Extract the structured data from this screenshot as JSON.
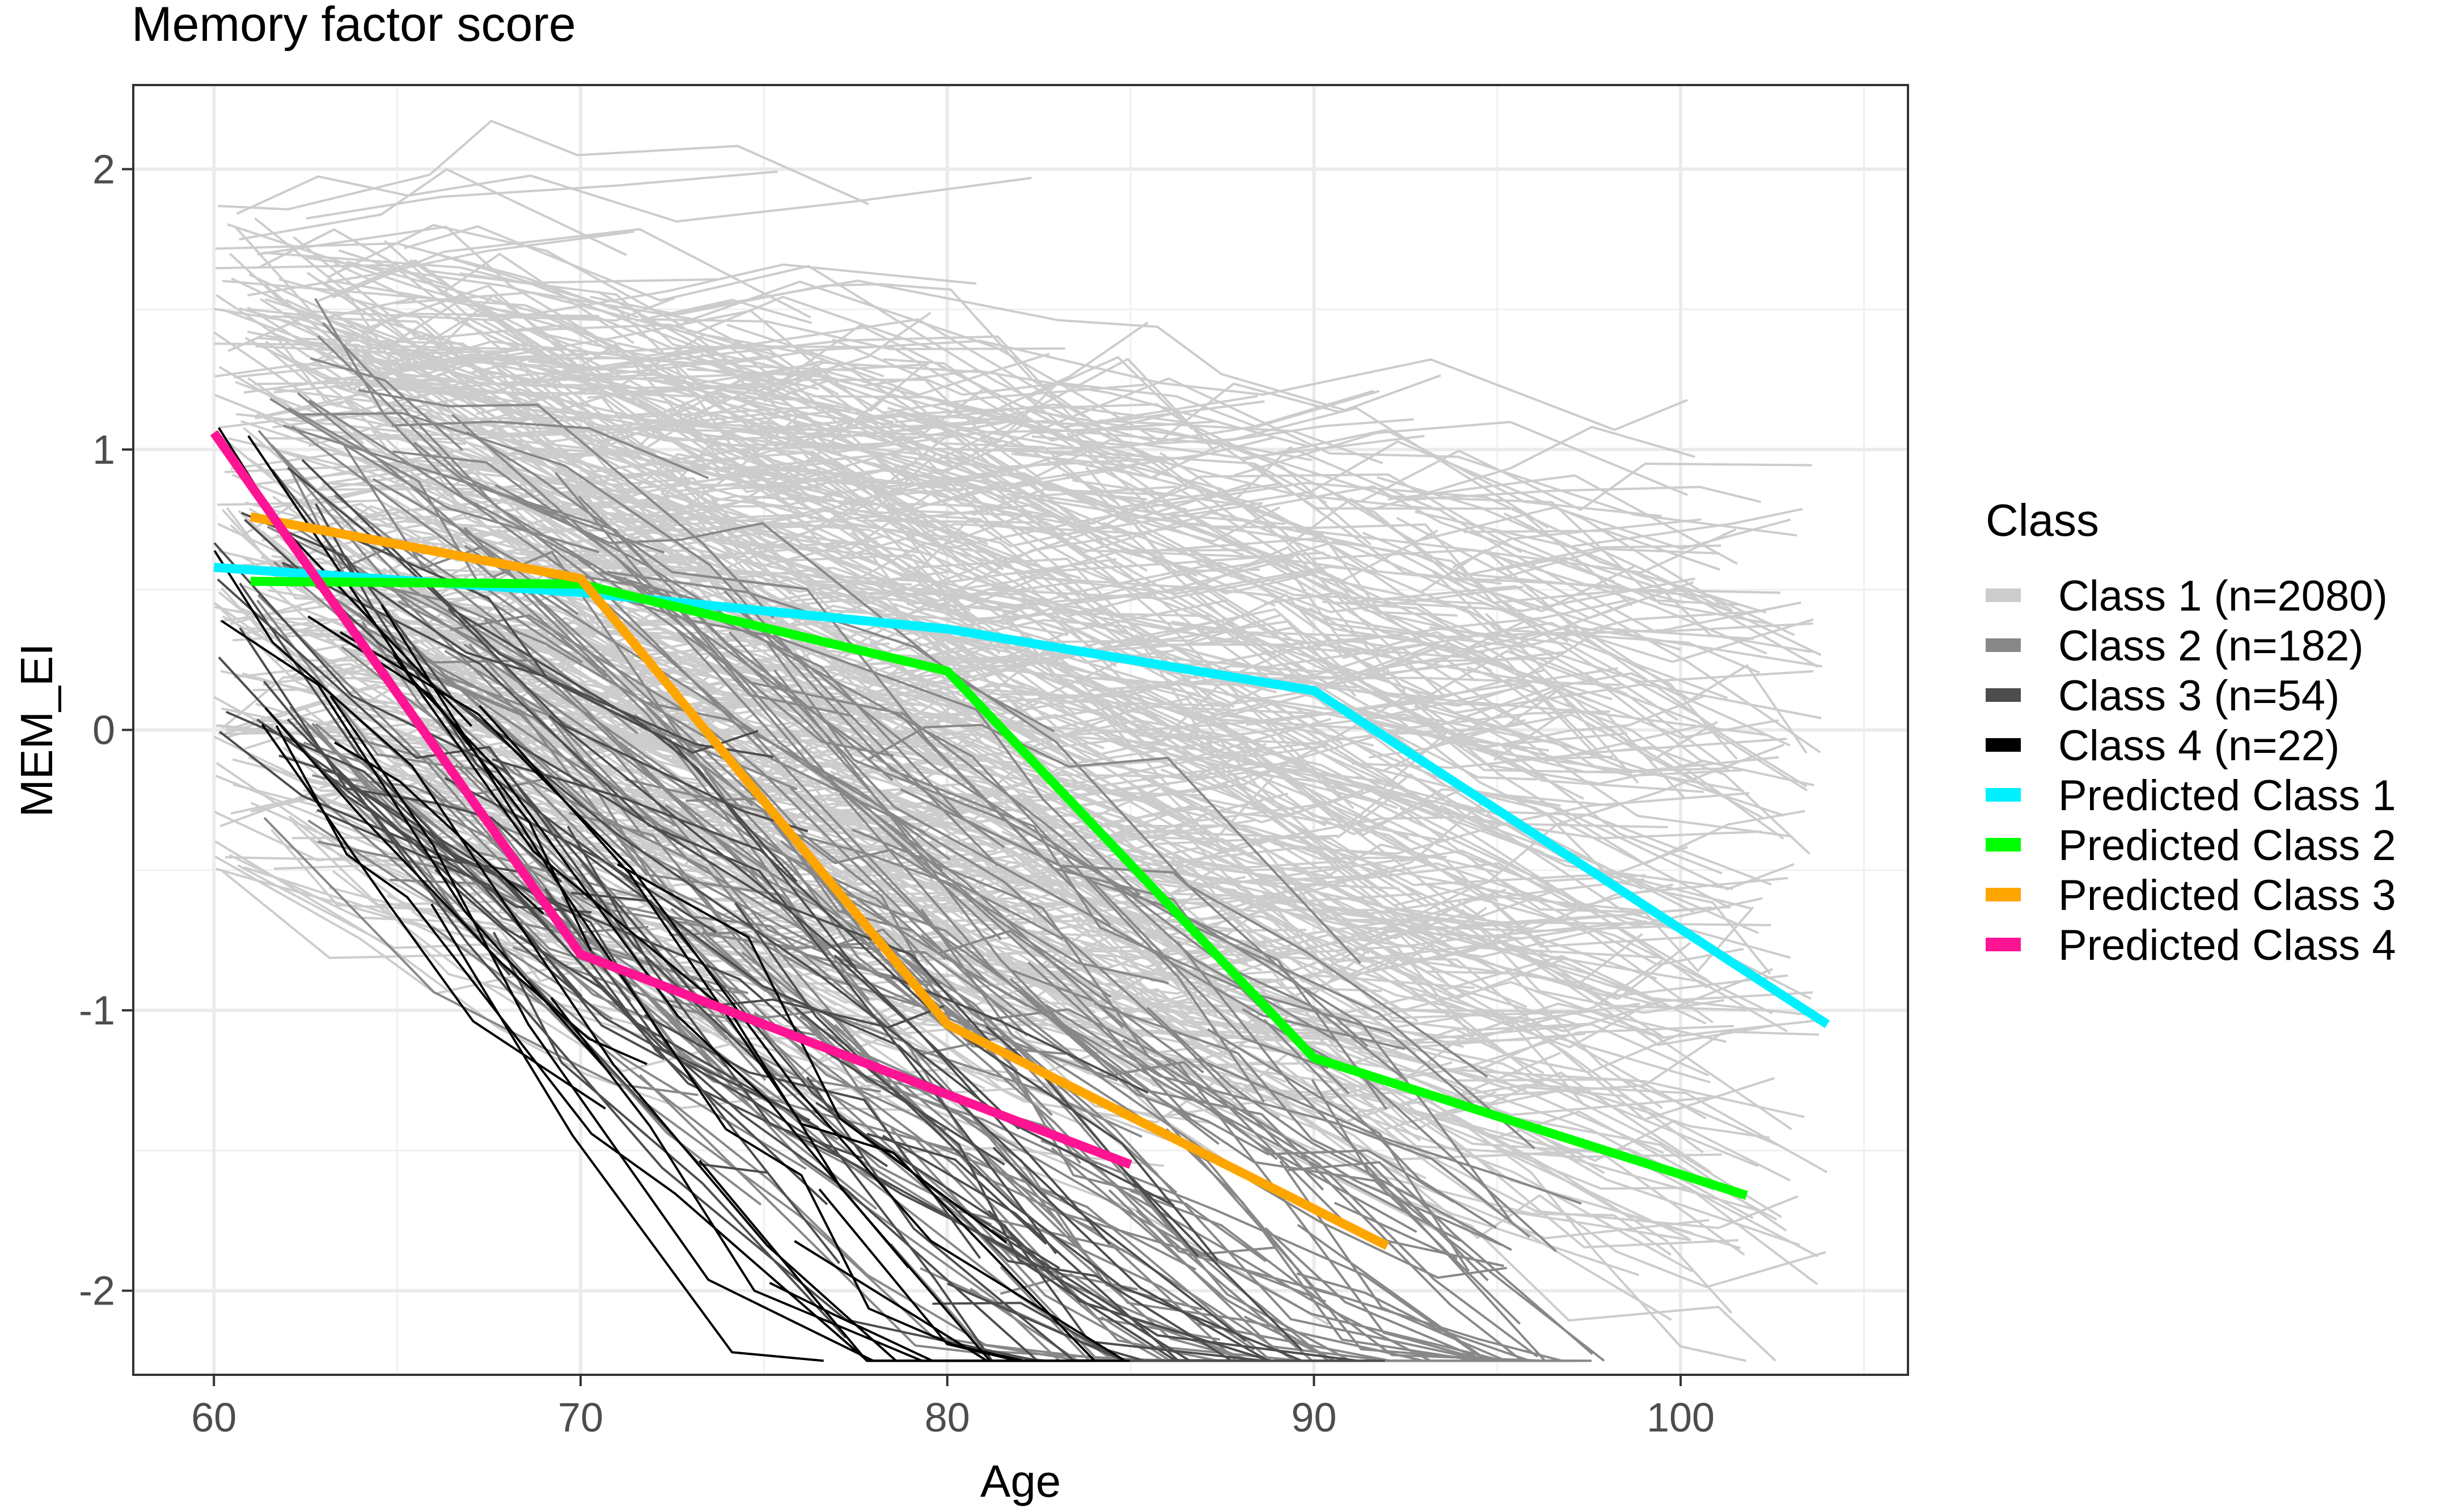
{
  "chart_data": {
    "type": "line",
    "title": "Memory factor score",
    "xlabel": "Age",
    "ylabel": "MEM_EI",
    "xlim": [
      57.8,
      106.2
    ],
    "ylim": [
      -2.3,
      2.3
    ],
    "x_ticks": [
      60,
      70,
      80,
      90,
      100
    ],
    "y_ticks": [
      -2,
      -1,
      0,
      1,
      2
    ],
    "x_tick_labels": [
      "60",
      "70",
      "80",
      "90",
      "100"
    ],
    "y_tick_labels": [
      "-2",
      "-1",
      "0",
      "1",
      "2"
    ],
    "grid": true,
    "legend": {
      "title": "Class",
      "position": "right",
      "entries": [
        {
          "label": "Class 1 (n=2080)",
          "color": "#cccccc"
        },
        {
          "label": "Class 2 (n=182)",
          "color": "#888888"
        },
        {
          "label": "Class 3 (n=54)",
          "color": "#4d4d4d"
        },
        {
          "label": "Class 4 (n=22)",
          "color": "#000000"
        },
        {
          "label": "Predicted Class 1",
          "color": "#00f0ff"
        },
        {
          "label": "Predicted Class 2",
          "color": "#00ff00"
        },
        {
          "label": "Predicted Class 3",
          "color": "#ffa500"
        },
        {
          "label": "Predicted Class 4",
          "color": "#ff1493"
        }
      ]
    },
    "predicted_series": [
      {
        "name": "Predicted Class 1",
        "color": "#00f0ff",
        "x": [
          60,
          70,
          80,
          90,
          104
        ],
        "y": [
          0.58,
          0.49,
          0.36,
          0.14,
          -1.05
        ]
      },
      {
        "name": "Predicted Class 2",
        "color": "#00ff00",
        "x": [
          61,
          70,
          80,
          90,
          101.8
        ],
        "y": [
          0.53,
          0.52,
          0.21,
          -1.17,
          -1.66
        ]
      },
      {
        "name": "Predicted Class 3",
        "color": "#ffa500",
        "x": [
          61,
          70,
          80,
          92
        ],
        "y": [
          0.76,
          0.54,
          -1.05,
          -1.84
        ]
      },
      {
        "name": "Predicted Class 4",
        "color": "#ff1493",
        "x": [
          60,
          70,
          85
        ],
        "y": [
          1.06,
          -0.8,
          -1.55
        ]
      }
    ],
    "individual_trajectories": [
      {
        "class": "Class 1",
        "color": "#cccccc",
        "count": 2080,
        "age_range": [
          60,
          104
        ],
        "start_y_range": [
          -0.5,
          1.9
        ],
        "slope_per_year": -0.03
      },
      {
        "class": "Class 2",
        "color": "#888888",
        "count": 182,
        "age_range": [
          61,
          98
        ],
        "start_y_range": [
          -0.3,
          1.7
        ],
        "slope_per_year": -0.09
      },
      {
        "class": "Class 3",
        "color": "#4d4d4d",
        "count": 54,
        "age_range": [
          60,
          92
        ],
        "start_y_range": [
          0.0,
          1.3
        ],
        "slope_per_year": -0.11
      },
      {
        "class": "Class 4",
        "color": "#000000",
        "count": 22,
        "age_range": [
          60,
          85
        ],
        "start_y_range": [
          0.2,
          1.2
        ],
        "slope_per_year": -0.15
      }
    ]
  }
}
